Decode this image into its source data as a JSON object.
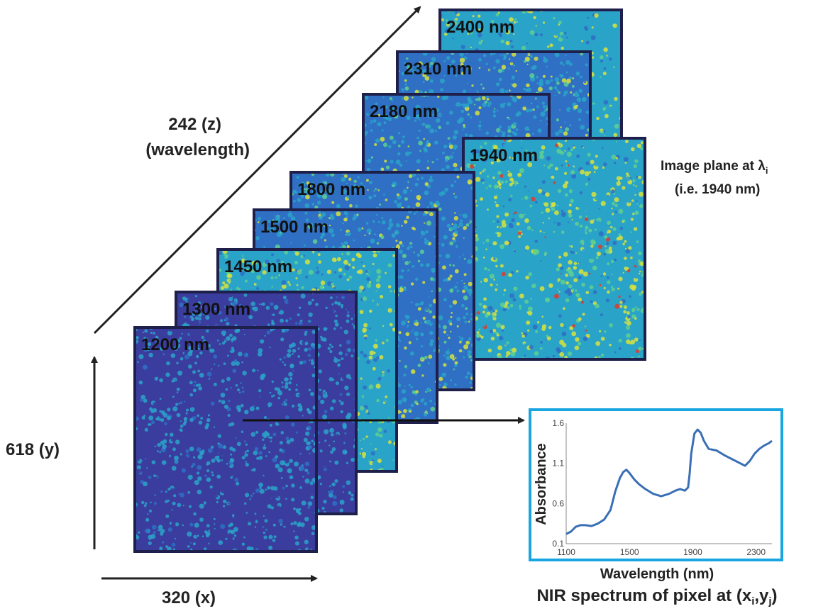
{
  "colors": {
    "frame": "#1e1f4a",
    "spectrum_frame": "#19a6e0",
    "spectrum_line": "#3a6fb5",
    "arrow": "#222222",
    "palette": [
      "#3b3d9e",
      "#2f6fc4",
      "#2aa3c9",
      "#5fd08f",
      "#d8e23b",
      "#f6c431",
      "#e03a2c"
    ]
  },
  "cube": {
    "layers": [
      {
        "label": "2400 nm",
        "level": 0.55,
        "hot": 0.0
      },
      {
        "label": "2310 nm",
        "level": 0.4,
        "hot": 0.0
      },
      {
        "label": "2180 nm",
        "level": 0.32,
        "hot": 0.0
      },
      {
        "label": "1940 nm",
        "level": 0.82,
        "hot": 0.04
      },
      {
        "label": "1800 nm",
        "level": 0.42,
        "hot": 0.0
      },
      {
        "label": "1500 nm",
        "level": 0.45,
        "hot": 0.0
      },
      {
        "label": "1450 nm",
        "level": 0.7,
        "hot": 0.0
      },
      {
        "label": "1300 nm",
        "level": 0.1,
        "hot": 0.0
      },
      {
        "label": "1200 nm",
        "level": 0.06,
        "hot": 0.0
      }
    ]
  },
  "axes": {
    "z_line1": "242 (z)",
    "z_line2": "(wavelength)",
    "y_label": "618 (y)",
    "x_label": "320 (x)"
  },
  "annotation": {
    "line1_prefix": "Image plane at λ",
    "line1_sub": "i",
    "line2": "(i.e. 1940 nm)"
  },
  "spectrum": {
    "caption_prefix": "NIR spectrum of pixel at (x",
    "caption_sub1": "i",
    "caption_mid": ",y",
    "caption_sub2": "j",
    "caption_suffix": ")"
  },
  "chart_data": {
    "type": "line",
    "title": "",
    "xlabel": "Wavelength (nm)",
    "ylabel": "Absorbance",
    "xlim": [
      1100,
      2400
    ],
    "ylim": [
      0.1,
      1.6
    ],
    "x_ticks": [
      1100,
      1500,
      1900,
      2300
    ],
    "y_ticks": [
      0.1,
      0.6,
      1.1,
      1.6
    ],
    "grid": false,
    "series": [
      {
        "x": [
          1100,
          1130,
          1160,
          1190,
          1220,
          1260,
          1300,
          1340,
          1380,
          1410,
          1440,
          1460,
          1480,
          1500,
          1530,
          1560,
          1600,
          1650,
          1700,
          1750,
          1790,
          1820,
          1850,
          1870,
          1880,
          1890,
          1910,
          1930,
          1950,
          1970,
          2000,
          2050,
          2100,
          2150,
          2200,
          2230,
          2260,
          2290,
          2320,
          2350,
          2380,
          2400
        ],
        "y": [
          0.22,
          0.25,
          0.31,
          0.33,
          0.33,
          0.32,
          0.35,
          0.4,
          0.52,
          0.75,
          0.92,
          0.99,
          1.02,
          0.98,
          0.9,
          0.84,
          0.78,
          0.72,
          0.69,
          0.72,
          0.76,
          0.78,
          0.76,
          0.8,
          0.97,
          1.22,
          1.47,
          1.52,
          1.48,
          1.38,
          1.28,
          1.26,
          1.2,
          1.15,
          1.1,
          1.07,
          1.13,
          1.22,
          1.28,
          1.32,
          1.35,
          1.38
        ]
      }
    ]
  }
}
